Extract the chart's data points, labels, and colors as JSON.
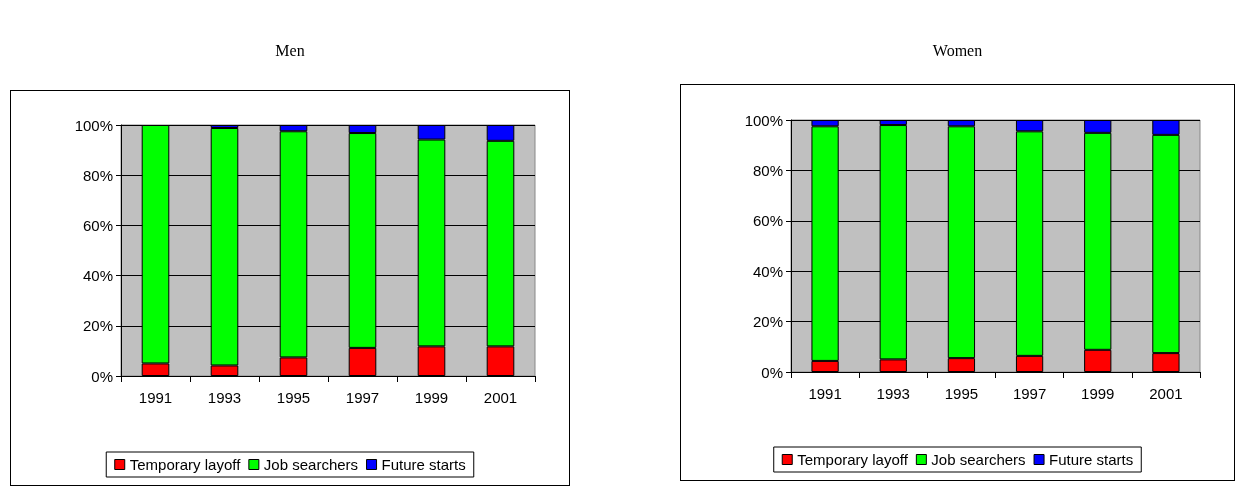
{
  "chart_data": [
    {
      "type": "bar",
      "title": "Men",
      "categories": [
        "1991",
        "1993",
        "1995",
        "1997",
        "1999",
        "2001"
      ],
      "stacked": true,
      "ylim": [
        0,
        100
      ],
      "yticks": [
        {
          "value": 0,
          "label": "0%"
        },
        {
          "value": 20,
          "label": "20%"
        },
        {
          "value": 40,
          "label": "40%"
        },
        {
          "value": 60,
          "label": "60%"
        },
        {
          "value": 80,
          "label": "80%"
        },
        {
          "value": 100,
          "label": "100%"
        }
      ],
      "grid": "y",
      "legend": "bottom",
      "series": [
        {
          "name": "Temporary layoff",
          "color": "#ff0000",
          "values": [
            5.0,
            4.2,
            7.4,
            11.2,
            11.8,
            11.8
          ]
        },
        {
          "name": "Job searchers",
          "color": "#00ff00",
          "values": [
            95.0,
            94.6,
            90.1,
            85.6,
            82.4,
            81.9
          ]
        },
        {
          "name": "Future starts",
          "color": "#0000ff",
          "values": [
            0,
            1.2,
            2.5,
            3.2,
            5.8,
            6.3
          ]
        }
      ]
    },
    {
      "type": "bar",
      "title": "Women",
      "categories": [
        "1991",
        "1993",
        "1995",
        "1997",
        "1999",
        "2001"
      ],
      "stacked": true,
      "ylim": [
        0,
        100
      ],
      "yticks": [
        {
          "value": 0,
          "label": "0%"
        },
        {
          "value": 20,
          "label": "20%"
        },
        {
          "value": 40,
          "label": "40%"
        },
        {
          "value": 60,
          "label": "60%"
        },
        {
          "value": 80,
          "label": "80%"
        },
        {
          "value": 100,
          "label": "100%"
        }
      ],
      "grid": "y",
      "legend": "bottom",
      "series": [
        {
          "name": "Temporary layoff",
          "color": "#ff0000",
          "values": [
            4.4,
            5.0,
            5.5,
            6.4,
            8.8,
            7.5
          ]
        },
        {
          "name": "Job searchers",
          "color": "#00ff00",
          "values": [
            93.1,
            93.0,
            92.0,
            89.1,
            86.1,
            86.6
          ]
        },
        {
          "name": "Future starts",
          "color": "#0000ff",
          "values": [
            2.5,
            2.0,
            2.5,
            4.5,
            5.1,
            5.9
          ]
        }
      ]
    }
  ]
}
